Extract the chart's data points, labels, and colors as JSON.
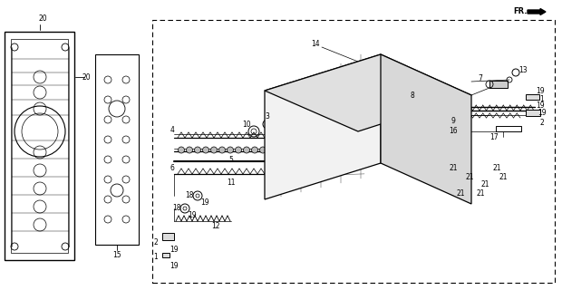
{
  "bg_color": "#ffffff",
  "line_color": "#000000",
  "figsize": [
    6.2,
    3.2
  ],
  "dpi": 100,
  "fr_text": "FR.",
  "label_fs": 5.5,
  "lw": 0.7
}
